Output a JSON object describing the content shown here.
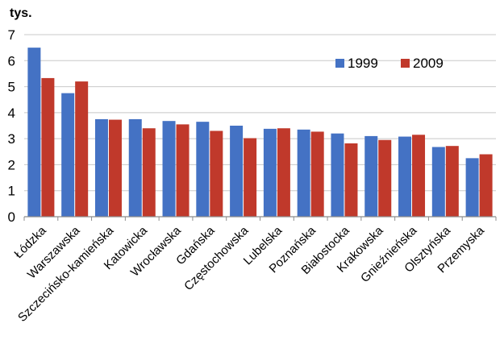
{
  "chart_data": {
    "type": "bar",
    "unit_label": "tys.",
    "categories": [
      "Łódzka",
      "Warszawska",
      "Szczecińsko-kamieńska",
      "Katowicka",
      "Wrocławska",
      "Gdańska",
      "Częstochowska",
      "Lubelska",
      "Poznańska",
      "Białostocka",
      "Krakowska",
      "Gnieźnieńska",
      "Olsztyńska",
      "Przemyska"
    ],
    "series": [
      {
        "name": "1999",
        "color": "#4472c4",
        "values": [
          6.5,
          4.75,
          3.75,
          3.75,
          3.68,
          3.65,
          3.5,
          3.38,
          3.35,
          3.2,
          3.1,
          3.08,
          2.68,
          2.25
        ]
      },
      {
        "name": "2009",
        "color": "#c0392b",
        "values": [
          5.33,
          5.2,
          3.73,
          3.4,
          3.55,
          3.3,
          3.02,
          3.4,
          3.27,
          2.82,
          2.95,
          3.15,
          2.72,
          2.4
        ]
      }
    ],
    "ylim": [
      0,
      7
    ],
    "yticks": [
      "0",
      "1",
      "2",
      "3",
      "4",
      "5",
      "6",
      "7"
    ],
    "grid": true,
    "legend_position": "top-right"
  }
}
